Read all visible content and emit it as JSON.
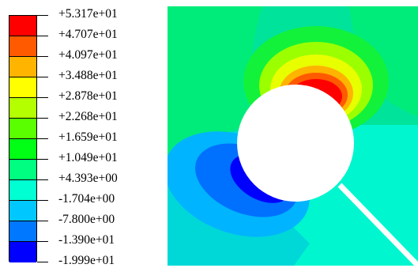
{
  "legend": {
    "labels": [
      "+5.317e+01",
      "+4.707e+01",
      "+4.097e+01",
      "+3.488e+01",
      "+2.878e+01",
      "+2.268e+01",
      "+1.659e+01",
      "+1.049e+01",
      "+4.393e+00",
      "-1.704e+00",
      "-7.800e+00",
      "-1.390e+01",
      "-1.999e+01"
    ],
    "colors": [
      "#ff0000",
      "#ff5a00",
      "#ffb400",
      "#ffff00",
      "#b4ff00",
      "#5aff00",
      "#00ff14",
      "#00ff80",
      "#00ffd2",
      "#00c8ff",
      "#0078ff",
      "#0000ff"
    ]
  },
  "contour": {
    "background_color": "#00e49c",
    "hole_color": "#ffffff",
    "crack_color": "#ffffff"
  }
}
